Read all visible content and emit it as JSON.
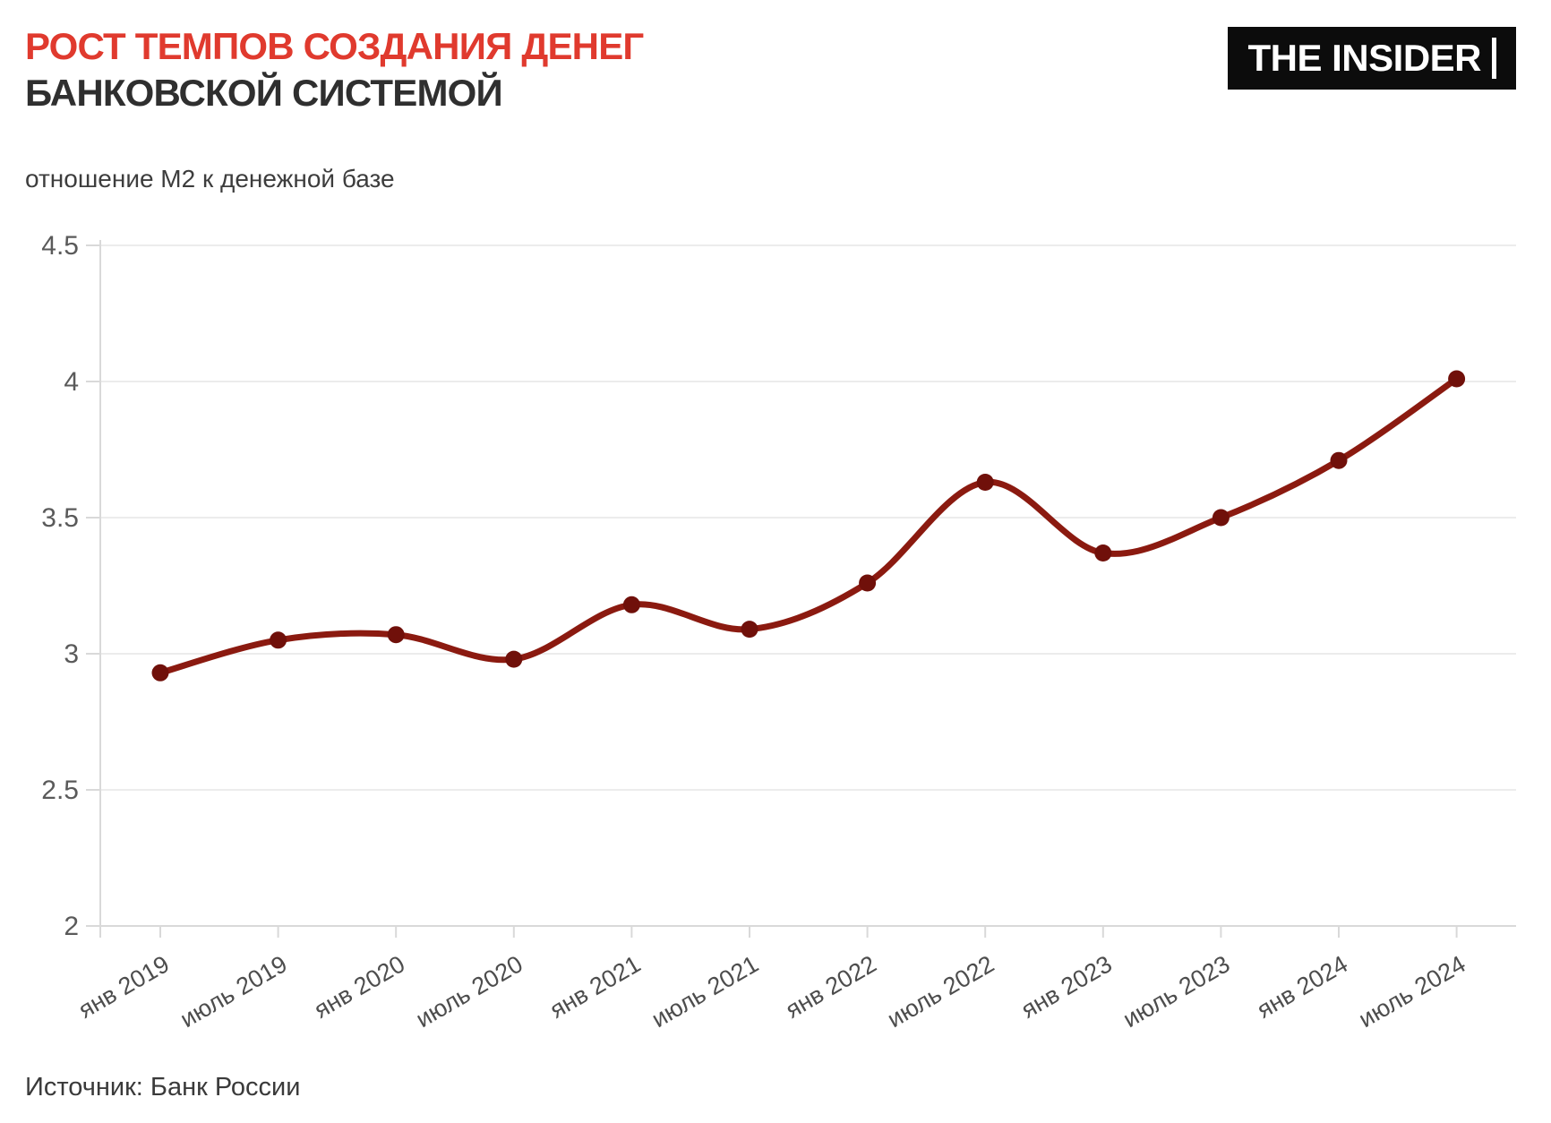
{
  "header": {
    "title_line1": "РОСТ ТЕМПОВ СОЗДАНИЯ ДЕНЕГ",
    "title_line2": "БАНКОВСКОЙ СИСТЕМОЙ",
    "logo_text": "THE INSIDER"
  },
  "subtitle": "отношение М2 к денежной базе",
  "source": "Источник: Банк России",
  "colors": {
    "title_accent": "#E03A2E",
    "title_dark": "#2F2F2F",
    "line": "#8B1A10",
    "marker": "#70100A",
    "grid": "#ECECEC",
    "axis": "#D9D9D9",
    "y_tick_label": "#5A5A5A",
    "x_tick_label": "#4D4D4D"
  },
  "chart_data": {
    "type": "line",
    "title": "РОСТ ТЕМПОВ СОЗДАНИЯ ДЕНЕГ БАНКОВСКОЙ СИСТЕМОЙ",
    "subtitle": "отношение М2 к денежной базе",
    "categories": [
      "янв 2019",
      "июль 2019",
      "янв 2020",
      "июль 2020",
      "янв 2021",
      "июль 2021",
      "янв 2022",
      "июль 2022",
      "янв 2023",
      "июль 2023",
      "янв 2024",
      "июль 2024"
    ],
    "series": [
      {
        "name": "отношение М2 к денежной базе",
        "values": [
          2.93,
          3.05,
          3.07,
          2.98,
          3.18,
          3.09,
          3.26,
          3.63,
          3.37,
          3.5,
          3.71,
          4.01
        ]
      }
    ],
    "ylim": [
      2,
      4.5
    ],
    "yticks": [
      {
        "value": 4.5,
        "label": "4.5"
      },
      {
        "value": 4,
        "label": "4"
      },
      {
        "value": 3.5,
        "label": "3.5"
      },
      {
        "value": 3,
        "label": "3"
      },
      {
        "value": 2.5,
        "label": "2.5"
      },
      {
        "value": 2,
        "label": "2"
      }
    ],
    "grid": "horizontal",
    "legend": "none",
    "marker": "dot",
    "curve": "smooth",
    "source": "Банк России"
  }
}
